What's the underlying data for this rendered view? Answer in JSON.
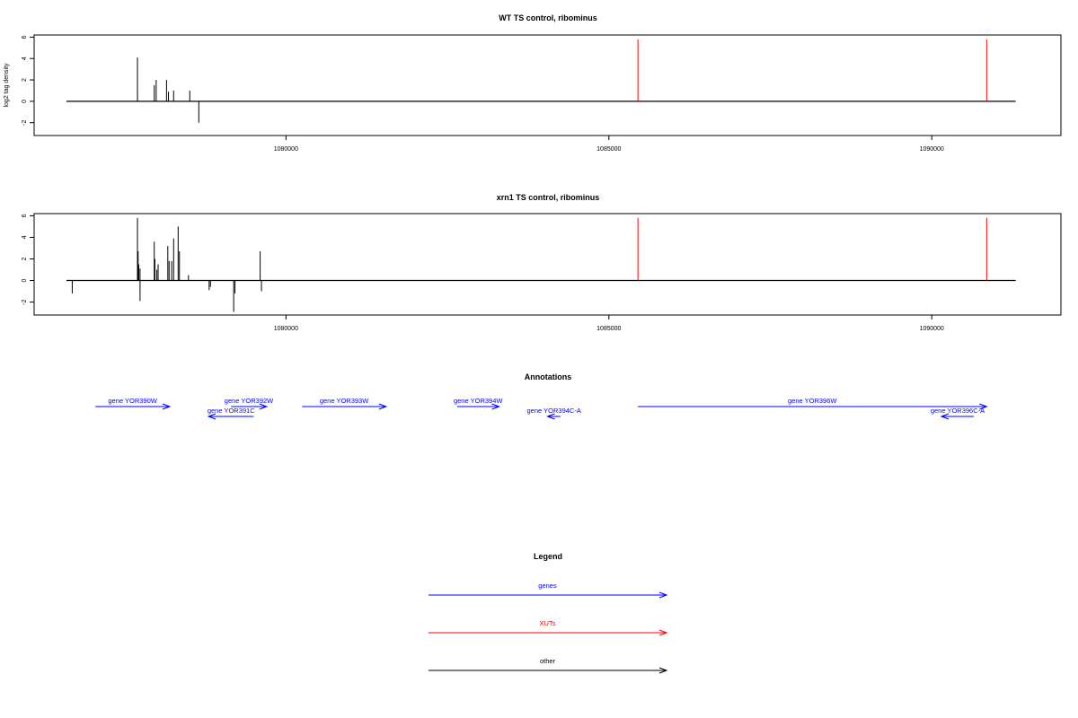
{
  "chart_data": [
    {
      "type": "bar",
      "title": "WT TS control, ribominus",
      "xlabel": "",
      "ylabel": "log2 tag density",
      "xlim": [
        1076100,
        1092000
      ],
      "ylim": [
        -3.2,
        6.2
      ],
      "xticks": [
        1080000,
        1085000,
        1090000
      ],
      "yticks": [
        -2,
        0,
        2,
        4,
        6
      ],
      "baseline": {
        "x_start": 1076600,
        "x_end": 1091300
      },
      "series": [
        {
          "color": "#000000",
          "values": [
            {
              "x": 1077700,
              "y": 4.1
            },
            {
              "x": 1077700,
              "y": 1.0
            },
            {
              "x": 1077960,
              "y": 1.5
            },
            {
              "x": 1077990,
              "y": 2.0
            },
            {
              "x": 1078150,
              "y": 2.0
            },
            {
              "x": 1078180,
              "y": 0.9
            },
            {
              "x": 1078260,
              "y": 1.0
            },
            {
              "x": 1078510,
              "y": 1.0
            },
            {
              "x": 1078650,
              "y": -2.0
            }
          ]
        },
        {
          "color": "#ff0000",
          "values": [
            {
              "x": 1085450,
              "y": 5.8
            },
            {
              "x": 1090850,
              "y": 5.8
            }
          ]
        }
      ]
    },
    {
      "type": "bar",
      "title": "xrn1 TS control, ribominus",
      "xlabel": "",
      "ylabel": "",
      "xlim": [
        1076100,
        1092000
      ],
      "ylim": [
        -3.2,
        6.2
      ],
      "xticks": [
        1080000,
        1085000,
        1090000
      ],
      "yticks": [
        -2,
        0,
        2,
        4,
        6
      ],
      "baseline": {
        "x_start": 1076600,
        "x_end": 1091300
      },
      "series": [
        {
          "color": "#000000",
          "values": [
            {
              "x": 1076690,
              "y": -1.2
            },
            {
              "x": 1077700,
              "y": 5.8
            },
            {
              "x": 1077710,
              "y": 2.7
            },
            {
              "x": 1077720,
              "y": 1.5
            },
            {
              "x": 1077740,
              "y": 1.1
            },
            {
              "x": 1077740,
              "y": -1.9
            },
            {
              "x": 1077960,
              "y": 3.6
            },
            {
              "x": 1077970,
              "y": 2.0
            },
            {
              "x": 1078000,
              "y": 1.0
            },
            {
              "x": 1078020,
              "y": 1.5
            },
            {
              "x": 1078170,
              "y": 3.2
            },
            {
              "x": 1078190,
              "y": 1.8
            },
            {
              "x": 1078230,
              "y": 1.8
            },
            {
              "x": 1078260,
              "y": 3.9
            },
            {
              "x": 1078330,
              "y": 5.0
            },
            {
              "x": 1078350,
              "y": 2.7
            },
            {
              "x": 1078490,
              "y": 0.5
            },
            {
              "x": 1078810,
              "y": -0.9
            },
            {
              "x": 1078830,
              "y": -0.6
            },
            {
              "x": 1079190,
              "y": -2.9
            },
            {
              "x": 1079210,
              "y": -1.2
            },
            {
              "x": 1079600,
              "y": 2.7
            },
            {
              "x": 1079620,
              "y": -1.0
            }
          ]
        },
        {
          "color": "#ff0000",
          "values": [
            {
              "x": 1085450,
              "y": 5.8
            },
            {
              "x": 1090850,
              "y": 5.8
            }
          ]
        }
      ]
    }
  ],
  "annotations": {
    "title": "Annotations",
    "xlim": [
      1076100,
      1092000
    ],
    "genes": [
      {
        "label": "gene YOR390W",
        "start": 1077050,
        "end": 1078200,
        "strand": "+",
        "row": 0,
        "color": "#0000ff"
      },
      {
        "label": "gene YOR391C",
        "start": 1078800,
        "end": 1079500,
        "strand": "-",
        "row": 1,
        "color": "#0000ff"
      },
      {
        "label": "gene YOR392W",
        "start": 1079150,
        "end": 1079700,
        "strand": "+",
        "row": 0,
        "color": "#0000ff"
      },
      {
        "label": "gene YOR393W",
        "start": 1080250,
        "end": 1081550,
        "strand": "+",
        "row": 0,
        "color": "#0000ff"
      },
      {
        "label": "gene YOR394W",
        "start": 1082650,
        "end": 1083300,
        "strand": "+",
        "row": 0,
        "color": "#0000ff"
      },
      {
        "label": "gene YOR394C-A",
        "start": 1084050,
        "end": 1084250,
        "strand": "-",
        "row": 1,
        "color": "#0000ff"
      },
      {
        "label": "gene YOR396W",
        "start": 1085450,
        "end": 1090850,
        "strand": "+",
        "row": 0,
        "color": "#0000ff"
      },
      {
        "label": "gene YOR396C-A",
        "start": 1090150,
        "end": 1090650,
        "strand": "-",
        "row": 1,
        "color": "#0000ff"
      }
    ]
  },
  "legend": {
    "title": "Legend",
    "items": [
      {
        "label": "genes",
        "color": "#0000ff"
      },
      {
        "label": "XUTs",
        "color": "#ff0000"
      },
      {
        "label": "other",
        "color": "#000000"
      }
    ]
  }
}
